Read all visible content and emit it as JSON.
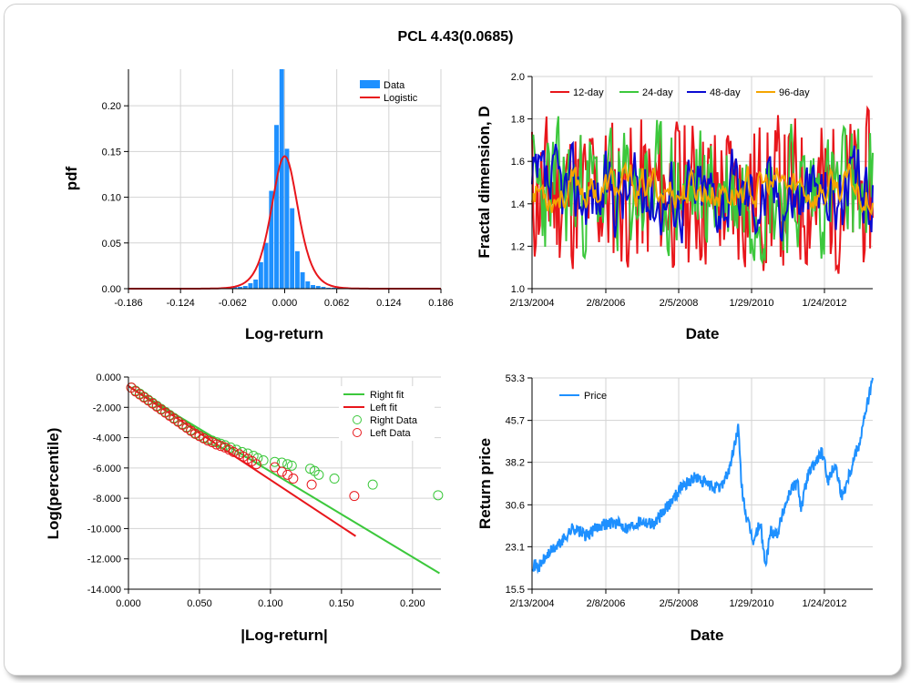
{
  "page": {
    "title": "PCL 4.43(0.0685)"
  },
  "chart_data": [
    {
      "id": "histogram",
      "type": "bar",
      "xlabel": "Log-return",
      "ylabel": "pdf",
      "xlim": [
        -0.186,
        0.186
      ],
      "ylim": [
        0,
        0.24
      ],
      "xticks": [
        "-0.186",
        "-0.124",
        "-0.062",
        "0.000",
        "0.062",
        "0.124",
        "0.186"
      ],
      "yticks": [
        "0.00",
        "0.05",
        "0.10",
        "0.15",
        "0.20"
      ],
      "legend": {
        "placement": "top-right",
        "entries": [
          "Data",
          "Logistic"
        ]
      },
      "colors": {
        "data": "#1e90ff",
        "fit": "#e8161b"
      },
      "bin_width": 0.0062,
      "bins_x": [
        -0.0651,
        -0.0589,
        -0.0527,
        -0.0465,
        -0.0403,
        -0.0341,
        -0.0279,
        -0.0217,
        -0.0155,
        -0.0093,
        -0.0031,
        0.0031,
        0.0093,
        0.0155,
        0.0217,
        0.0279,
        0.0341,
        0.0403,
        0.0465,
        0.0527,
        0.0589,
        0.0651,
        0.0713
      ],
      "bins_y": [
        0.001,
        0.002,
        0.002,
        0.003,
        0.006,
        0.01,
        0.029,
        0.05,
        0.107,
        0.179,
        0.242,
        0.153,
        0.088,
        0.041,
        0.018,
        0.008,
        0.004,
        0.003,
        0.002,
        0.001,
        0.001,
        0.001,
        0.001
      ],
      "fit_center": 0.0,
      "fit_scale": 0.0107
    },
    {
      "id": "fractal",
      "type": "line",
      "xlabel": "Date",
      "ylabel": "Fractal dimension, D",
      "ylim": [
        1.0,
        2.0
      ],
      "xticks": [
        "2/13/2004",
        "2/8/2006",
        "2/5/2008",
        "1/29/2010",
        "1/24/2012"
      ],
      "yticks": [
        "1.0",
        "1.2",
        "1.4",
        "1.6",
        "1.8",
        "2.0"
      ],
      "legend": {
        "placement": "top",
        "entries": [
          "12-day",
          "24-day",
          "48-day",
          "96-day"
        ]
      },
      "series": [
        {
          "name": "12-day",
          "color": "#e8161b",
          "seed": 11,
          "mean": 1.45,
          "amp": 0.42,
          "smooth": 0.15
        },
        {
          "name": "24-day",
          "color": "#3cc83c",
          "seed": 23,
          "mean": 1.46,
          "amp": 0.4,
          "smooth": 0.3
        },
        {
          "name": "48-day",
          "color": "#0a0ad2",
          "seed": 37,
          "mean": 1.45,
          "amp": 0.34,
          "smooth": 0.55
        },
        {
          "name": "96-day",
          "color": "#f5a500",
          "seed": 53,
          "mean": 1.47,
          "amp": 0.26,
          "smooth": 0.75
        }
      ]
    },
    {
      "id": "tail",
      "type": "scatter",
      "xlabel": "|Log-return|",
      "ylabel": "Log(percentile)",
      "xlim": [
        0,
        0.22
      ],
      "ylim": [
        -14,
        0
      ],
      "xticks": [
        "0.000",
        "0.050",
        "0.100",
        "0.150",
        "0.200"
      ],
      "yticks": [
        "0.000",
        "-2.000",
        "-4.000",
        "-6.000",
        "-8.000",
        "-10.000",
        "-12.000",
        "-14.000"
      ],
      "legend": {
        "placement": "top-right",
        "entries": [
          "Right fit",
          "Left fit",
          "Right Data",
          "Left Data"
        ]
      },
      "colors": {
        "right": "#3cc83c",
        "left": "#e8161b"
      },
      "right_fit": [
        [
          0.0,
          -0.6
        ],
        [
          0.219,
          -12.95
        ]
      ],
      "left_fit": [
        [
          0.0,
          -0.6
        ],
        [
          0.16,
          -10.5
        ]
      ],
      "right_data": [
        [
          0.002,
          -0.7
        ],
        [
          0.005,
          -0.9
        ],
        [
          0.008,
          -1.1
        ],
        [
          0.011,
          -1.3
        ],
        [
          0.014,
          -1.5
        ],
        [
          0.017,
          -1.7
        ],
        [
          0.02,
          -1.9
        ],
        [
          0.023,
          -2.1
        ],
        [
          0.026,
          -2.3
        ],
        [
          0.029,
          -2.5
        ],
        [
          0.032,
          -2.7
        ],
        [
          0.035,
          -2.9
        ],
        [
          0.038,
          -3.1
        ],
        [
          0.041,
          -3.3
        ],
        [
          0.044,
          -3.5
        ],
        [
          0.047,
          -3.7
        ],
        [
          0.05,
          -3.85
        ],
        [
          0.053,
          -4.0
        ],
        [
          0.056,
          -4.1
        ],
        [
          0.059,
          -4.2
        ],
        [
          0.062,
          -4.3
        ],
        [
          0.065,
          -4.4
        ],
        [
          0.068,
          -4.5
        ],
        [
          0.072,
          -4.65
        ],
        [
          0.076,
          -4.8
        ],
        [
          0.08,
          -4.95
        ],
        [
          0.084,
          -5.05
        ],
        [
          0.088,
          -5.2
        ],
        [
          0.091,
          -5.35
        ],
        [
          0.095,
          -5.5
        ],
        [
          0.103,
          -5.6
        ],
        [
          0.108,
          -5.65
        ],
        [
          0.112,
          -5.75
        ],
        [
          0.115,
          -5.85
        ],
        [
          0.128,
          -6.05
        ],
        [
          0.131,
          -6.2
        ],
        [
          0.134,
          -6.45
        ],
        [
          0.145,
          -6.7
        ],
        [
          0.172,
          -7.1
        ],
        [
          0.218,
          -7.8
        ]
      ],
      "left_data": [
        [
          0.002,
          -0.7
        ],
        [
          0.005,
          -0.95
        ],
        [
          0.008,
          -1.15
        ],
        [
          0.011,
          -1.35
        ],
        [
          0.014,
          -1.55
        ],
        [
          0.017,
          -1.75
        ],
        [
          0.02,
          -1.95
        ],
        [
          0.023,
          -2.15
        ],
        [
          0.026,
          -2.35
        ],
        [
          0.029,
          -2.55
        ],
        [
          0.032,
          -2.75
        ],
        [
          0.035,
          -2.95
        ],
        [
          0.038,
          -3.15
        ],
        [
          0.041,
          -3.35
        ],
        [
          0.044,
          -3.55
        ],
        [
          0.047,
          -3.75
        ],
        [
          0.05,
          -3.9
        ],
        [
          0.053,
          -4.05
        ],
        [
          0.056,
          -4.2
        ],
        [
          0.059,
          -4.3
        ],
        [
          0.062,
          -4.45
        ],
        [
          0.065,
          -4.55
        ],
        [
          0.068,
          -4.65
        ],
        [
          0.071,
          -4.8
        ],
        [
          0.074,
          -4.95
        ],
        [
          0.078,
          -5.1
        ],
        [
          0.081,
          -5.25
        ],
        [
          0.084,
          -5.4
        ],
        [
          0.087,
          -5.55
        ],
        [
          0.09,
          -5.75
        ],
        [
          0.103,
          -5.95
        ],
        [
          0.108,
          -6.25
        ],
        [
          0.112,
          -6.45
        ],
        [
          0.116,
          -6.7
        ],
        [
          0.129,
          -7.1
        ],
        [
          0.159,
          -7.85
        ]
      ]
    },
    {
      "id": "price",
      "type": "line",
      "xlabel": "Date",
      "ylabel": "Return price",
      "ylim": [
        15.5,
        53.3
      ],
      "xticks": [
        "2/13/2004",
        "2/8/2006",
        "2/5/2008",
        "1/29/2010",
        "1/24/2012"
      ],
      "yticks": [
        "53.3",
        "45.7",
        "38.2",
        "30.6",
        "23.1",
        "15.5"
      ],
      "legend": {
        "placement": "top-left",
        "entries": [
          "Price"
        ]
      },
      "color": "#1e90ff",
      "anchors": [
        [
          0.0,
          20.0
        ],
        [
          0.02,
          19.5
        ],
        [
          0.05,
          22.0
        ],
        [
          0.08,
          23.5
        ],
        [
          0.12,
          26.5
        ],
        [
          0.16,
          25.0
        ],
        [
          0.2,
          27.0
        ],
        [
          0.24,
          27.5
        ],
        [
          0.28,
          26.5
        ],
        [
          0.32,
          27.8
        ],
        [
          0.36,
          27.2
        ],
        [
          0.4,
          30.5
        ],
        [
          0.44,
          34.0
        ],
        [
          0.48,
          35.5
        ],
        [
          0.52,
          34.0
        ],
        [
          0.55,
          33.5
        ],
        [
          0.58,
          37.0
        ],
        [
          0.605,
          44.5
        ],
        [
          0.615,
          34.0
        ],
        [
          0.63,
          28.0
        ],
        [
          0.65,
          24.0
        ],
        [
          0.67,
          27.5
        ],
        [
          0.685,
          19.5
        ],
        [
          0.7,
          26.0
        ],
        [
          0.72,
          25.5
        ],
        [
          0.74,
          30.0
        ],
        [
          0.76,
          33.5
        ],
        [
          0.78,
          34.5
        ],
        [
          0.79,
          30.0
        ],
        [
          0.81,
          36.0
        ],
        [
          0.83,
          38.0
        ],
        [
          0.85,
          40.0
        ],
        [
          0.87,
          35.0
        ],
        [
          0.89,
          38.0
        ],
        [
          0.91,
          32.0
        ],
        [
          0.93,
          36.0
        ],
        [
          0.95,
          40.0
        ],
        [
          0.96,
          41.5
        ],
        [
          0.98,
          47.5
        ],
        [
          1.0,
          53.3
        ]
      ]
    }
  ]
}
